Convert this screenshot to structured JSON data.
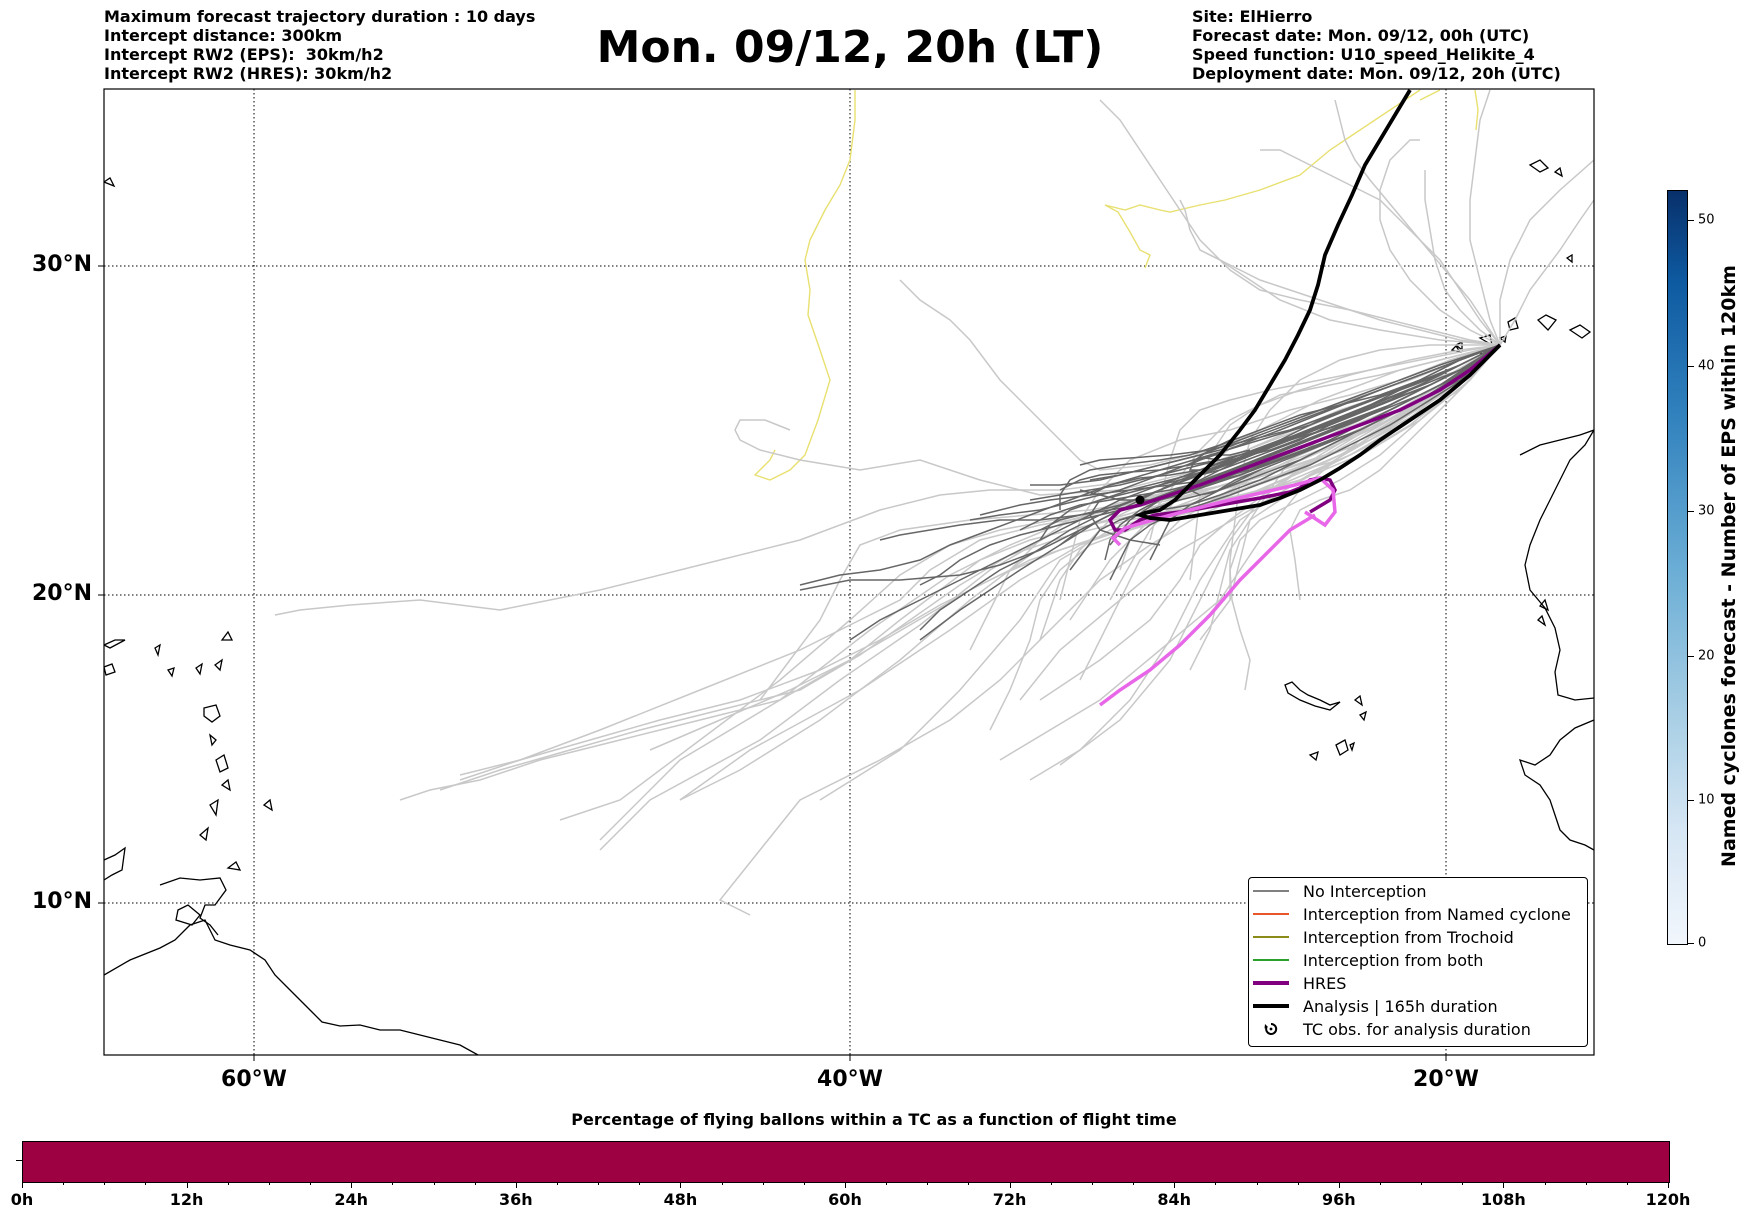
{
  "header": {
    "left_lines": [
      "Maximum forecast trajectory duration : 10 days",
      "Intercept distance: 300km",
      "Intercept RW2 (EPS):  30km/h2",
      "Intercept RW2 (HRES): 30km/h2"
    ],
    "title": "Mon. 09/12, 20h (LT)",
    "right_lines": [
      "Site: ElHierro",
      "Forecast date: Mon. 09/12, 00h (UTC)",
      "Speed function: U10_speed_Helikite_4",
      "Deployment date: Mon. 09/12, 20h (UTC)"
    ]
  },
  "map": {
    "lat_labels": [
      "30°N",
      "20°N",
      "10°N"
    ],
    "lon_labels": [
      "60°W",
      "40°W",
      "20°W"
    ],
    "gridlines": true,
    "legend": [
      {
        "label": "No Interception",
        "color": "#808080"
      },
      {
        "label": "Interception from Named cyclone",
        "color": "#e8562a"
      },
      {
        "label": "Interception from Trochoid",
        "color": "#8b8b1a"
      },
      {
        "label": "Interception from both",
        "color": "#2ca02c"
      },
      {
        "label": "HRES",
        "color": "#800080"
      },
      {
        "label": "Analysis | 165h duration",
        "color": "#000000"
      },
      {
        "label": "TC obs. for analysis duration",
        "icon": "cyclone-icon"
      }
    ],
    "colors": {
      "eps_light": "#c8c8c8",
      "eps_dark": "#666666",
      "hres": "#800080",
      "hres_highlight": "#e867e8",
      "analysis": "#000000",
      "cyclone_track": "#e8e070"
    }
  },
  "colorbar": {
    "title": "Named cyclones forecast - Number of EPS within 120km",
    "ticks": [
      "0",
      "10",
      "20",
      "30",
      "40",
      "50"
    ]
  },
  "flight_bar": {
    "title": "Percentage of flying ballons within a TC as a function of flight time",
    "ticks": [
      "0h",
      "12h",
      "24h",
      "36h",
      "48h",
      "60h",
      "72h",
      "84h",
      "96h",
      "108h",
      "120h"
    ],
    "color": "#9e0142"
  }
}
